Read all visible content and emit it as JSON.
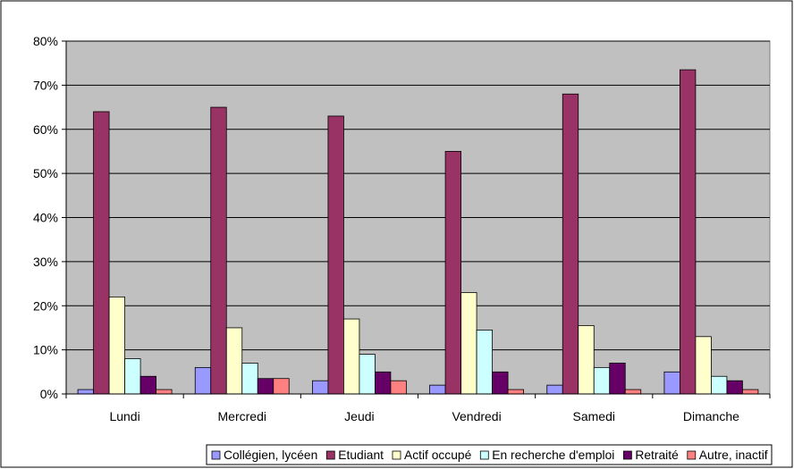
{
  "chart_data": {
    "type": "bar",
    "categories": [
      "Lundi",
      "Mercredi",
      "Jeudi",
      "Vendredi",
      "Samedi",
      "Dimanche"
    ],
    "series": [
      {
        "name": "Collégien, lycéen",
        "color": "#9999ff",
        "values": [
          1,
          6,
          3,
          2,
          2,
          5
        ]
      },
      {
        "name": "Etudiant",
        "color": "#993366",
        "values": [
          64,
          65,
          63,
          55,
          68,
          73.5
        ]
      },
      {
        "name": "Actif occupé",
        "color": "#ffffcc",
        "values": [
          22,
          15,
          17,
          23,
          15.5,
          13
        ]
      },
      {
        "name": "En recherche d'emploi",
        "color": "#ccffff",
        "values": [
          8,
          7,
          9,
          14.5,
          6,
          4
        ]
      },
      {
        "name": "Retraité",
        "color": "#660066",
        "values": [
          4,
          3.5,
          5,
          5,
          7,
          3
        ]
      },
      {
        "name": "Autre, inactif",
        "color": "#ff8080",
        "values": [
          1,
          3.5,
          3,
          1,
          1,
          1
        ]
      }
    ],
    "y_ticks": [
      "0%",
      "10%",
      "20%",
      "30%",
      "40%",
      "50%",
      "60%",
      "70%",
      "80%"
    ],
    "ylim": [
      0,
      80
    ],
    "grid": true,
    "plot_background": "#c0c0c0",
    "legend_position": "bottom"
  }
}
